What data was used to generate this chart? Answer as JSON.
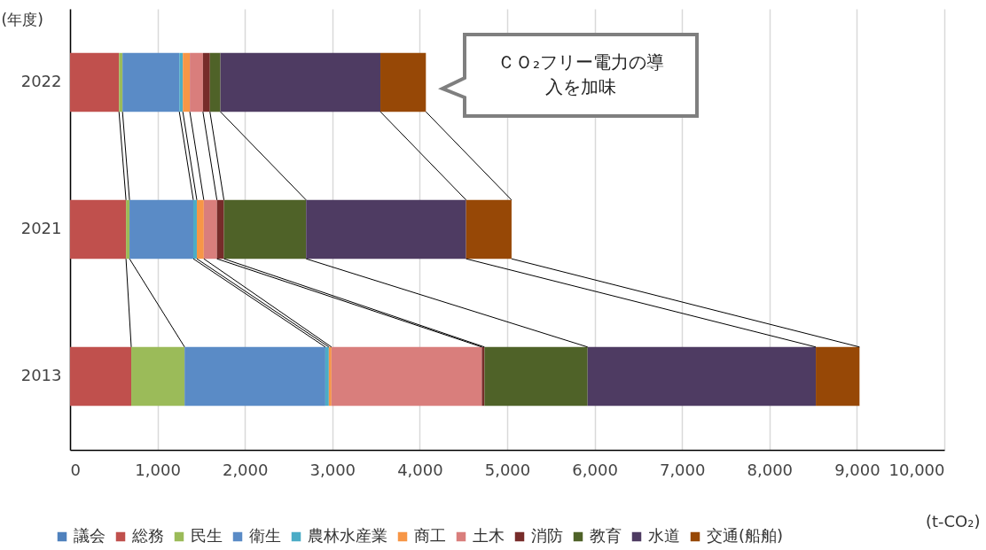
{
  "chart_data": {
    "type": "bar",
    "orientation": "horizontal",
    "stacked": true,
    "categories": [
      "2022",
      "2021",
      "2013"
    ],
    "series": [
      {
        "name": "議会",
        "color": "#4f81bd",
        "values": [
          0,
          0,
          0
        ]
      },
      {
        "name": "総務",
        "color": "#c0504d",
        "values": [
          560,
          640,
          700
        ]
      },
      {
        "name": "民生",
        "color": "#9bbb59",
        "values": [
          40,
          40,
          610
        ]
      },
      {
        "name": "衛生",
        "color": "#5a8bc6",
        "values": [
          650,
          730,
          1610
        ]
      },
      {
        "name": "農林水産業",
        "color": "#4bacc6",
        "values": [
          40,
          40,
          40
        ]
      },
      {
        "name": "商工",
        "color": "#f79646",
        "values": [
          80,
          80,
          30
        ]
      },
      {
        "name": "土木",
        "color": "#d97e7c",
        "values": [
          150,
          150,
          1720
        ]
      },
      {
        "name": "消防",
        "color": "#772c2a",
        "values": [
          80,
          80,
          30
        ]
      },
      {
        "name": "教育",
        "color": "#4f6228",
        "values": [
          120,
          940,
          1180
        ]
      },
      {
        "name": "水道",
        "color": "#4e3b62",
        "values": [
          1830,
          1830,
          2610
        ]
      },
      {
        "name": "交通(船舶)",
        "color": "#974806",
        "values": [
          520,
          520,
          500
        ]
      }
    ],
    "xlim": [
      0,
      10000
    ],
    "xticks": [
      0,
      {
        "value": 1000,
        "label": "1,000"
      },
      {
        "value": 2000,
        "label": "2,000"
      },
      {
        "value": 3000,
        "label": "3,000"
      },
      {
        "value": 4000,
        "label": "4,000"
      },
      {
        "value": 5000,
        "label": "5,000"
      },
      {
        "value": 6000,
        "label": "6,000"
      },
      {
        "value": 7000,
        "label": "7,000"
      },
      {
        "value": 8000,
        "label": "8,000"
      },
      {
        "value": 9000,
        "label": "9,000"
      },
      {
        "value": 10000,
        "label": "10,000"
      }
    ],
    "xlabel": "(t-CO₂)",
    "ylabel": "(年度)",
    "grid": "x",
    "legend": "bottom",
    "annotations": [
      "ＣＯ₂フリー電力の導入を加味"
    ]
  }
}
